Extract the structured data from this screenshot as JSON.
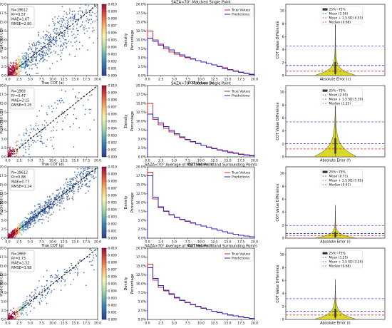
{
  "rows": [
    {
      "scatter": {
        "stats": [
          "N=19612",
          "R²=0.57",
          "MAE=1.67",
          "RMSE=2.80"
        ],
        "xlabel": "True COT (a)",
        "ylabel": "Predicted COT",
        "xticks": [
          "0.0",
          "2.5",
          "5.0",
          "7.5",
          "10.0",
          "12.5",
          "15.0",
          "17.5",
          "20.0"
        ],
        "yticks": [
          "0.0",
          "2.5",
          "5.0",
          "7.5",
          "10.0",
          "12.5",
          "15.0",
          "17.5",
          "20.0"
        ],
        "colorbar_label": "Density",
        "colorbar_ticks": [
          "0.000",
          "0.001",
          "0.002",
          "0.003",
          "0.004",
          "0.005",
          "0.006",
          "0.007",
          "0.008",
          "0.009",
          "0.010"
        ]
      },
      "hist": {
        "title": "SAZA<70° Matched Single Point",
        "xlabel": "COT Values (b)",
        "ylabel": "Percentage",
        "legend": [
          "True Values",
          "Predictions"
        ]
      },
      "violin": {
        "xlabel": "Absolute Error (c)",
        "ylabel": "COT Value Difference",
        "legend": [
          "25%~75%",
          "Mean (1.56)",
          "Mean + 1.5 SD (4.55)",
          "Median (0.68)"
        ]
      }
    },
    {
      "scatter": {
        "stats": [
          "N=1969",
          "R²=0.47",
          "MAE=2.15",
          "RMSE=3.25"
        ],
        "xlabel": "True COT (d)",
        "ylabel": "Predicted COT",
        "xticks": [
          "0.0",
          "2.5",
          "5.0",
          "7.5",
          "10.0",
          "12.5",
          "15.0",
          "17.5",
          "20.0"
        ],
        "yticks": [
          "0.0",
          "2.5",
          "5.0",
          "7.5",
          "10.0",
          "12.5",
          "15.0",
          "17.5",
          "20.0"
        ],
        "colorbar_label": "Density",
        "colorbar_ticks": [
          "0.000",
          "0.001",
          "0.002",
          "0.003",
          "0.004",
          "0.005",
          "0.006",
          "0.007",
          "0.008",
          "0.009",
          "0.010"
        ]
      },
      "hist": {
        "title": "SAZA>70° Matched Single Point",
        "xlabel": "COT Values (e)",
        "ylabel": "Percentage",
        "legend": [
          "True Values",
          "Predictions"
        ]
      },
      "violin": {
        "xlabel": "Absolute Error (f)",
        "ylabel": "COT Value Difference",
        "legend": [
          "25%~75%",
          "Mean (2.05)",
          "Mean + 1.5 SD (5.39)",
          "Median (1.22)"
        ]
      }
    },
    {
      "scatter": {
        "stats": [
          "N=19612",
          "R²=0.88",
          "MAE=0.77",
          "RMSE=1.24"
        ],
        "xlabel": "True COT (g)",
        "ylabel": "Predicted COT",
        "xticks": [
          "0.0",
          "2.5",
          "5.0",
          "7.5",
          "10.0",
          "12.5",
          "15.0",
          "17.5",
          "20.0"
        ],
        "yticks": [
          "0.0",
          "2.5",
          "5.0",
          "7.5",
          "10.0",
          "12.5",
          "15.0",
          "17.5",
          "20.0"
        ],
        "colorbar_label": "Density",
        "colorbar_ticks": [
          "0.000",
          "0.001",
          "0.002",
          "0.003",
          "0.004",
          "0.005",
          "0.006",
          "0.007",
          "0.008",
          "0.009",
          "0.010"
        ]
      },
      "hist": {
        "title": "SAZA<70° Average of Matched Point and Surrounding Points",
        "xlabel": "COT Values (h)",
        "ylabel": "Percentage",
        "legend": [
          "True Values",
          "Predictions"
        ]
      },
      "violin": {
        "xlabel": "Absolute Error (i)",
        "ylabel": "COT Value Difference",
        "legend": [
          "25%~75%",
          "Mean (0.71)",
          "Mean + 1.5 SD (1.95)",
          "Median (0.41)"
        ]
      }
    },
    {
      "scatter": {
        "stats": [
          "N=1969",
          "R²=0.73",
          "MAE=1.32",
          "RMSE=1.98"
        ],
        "xlabel": "True COT (j)",
        "ylabel": "Predicted COT",
        "xticks": [
          "0.0",
          "2.5",
          "5.0",
          "7.5",
          "10.0",
          "12.5",
          "15.0",
          "17.5",
          "20.0"
        ],
        "yticks": [
          "0.0",
          "2.5",
          "5.0",
          "7.5",
          "10.0",
          "12.5",
          "15.0",
          "17.5",
          "20.0"
        ],
        "colorbar_label": "Density",
        "colorbar_ticks": [
          "0.000",
          "0.001",
          "0.002",
          "0.003",
          "0.004",
          "0.005",
          "0.006",
          "0.007",
          "0.008",
          "0.009",
          "0.010"
        ]
      },
      "hist": {
        "title": "SAZA>70° Average of Matched Point and Surrounding Points",
        "xlabel": "COT Values (k)",
        "ylabel": "Percentage",
        "legend": [
          "True Values",
          "Predictions"
        ]
      },
      "violin": {
        "xlabel": "Absolute Error (l)",
        "ylabel": "COT Value Difference",
        "legend": [
          "25%~75%",
          "Mean (1.25)",
          "Mean + 1.5 SD (3.20)",
          "Median (0.68)"
        ]
      }
    }
  ],
  "chart_data": [
    {
      "type": "scatter",
      "name": "density-scatter",
      "xlim": [
        0,
        20
      ],
      "ylim": [
        0,
        20
      ],
      "reference_line": "y=x",
      "colorbar_range": [
        0,
        0.01
      ]
    },
    {
      "type": "bar",
      "name": "cot-histograms",
      "x": [
        0.5,
        1.5,
        2.5,
        3.5,
        4.5,
        5.5,
        6.5,
        7.5,
        8.5,
        9.5,
        10.5,
        11.5,
        12.5,
        13.5,
        14.5,
        15.5,
        16.5,
        17.5,
        18.5,
        19.5
      ],
      "xlim": [
        0,
        20
      ],
      "ylim": [
        0,
        20
      ],
      "yticks": [
        "0.0%",
        "2.5%",
        "5.0%",
        "7.5%",
        "10.0%",
        "12.5%",
        "15.0%",
        "17.5%",
        "20.0%"
      ],
      "xticks": [
        "0.0",
        "2.5",
        "5.0",
        "7.5",
        "10.0",
        "12.5",
        "15.0",
        "17.5",
        "20.0"
      ],
      "panels": [
        {
          "true": [
            12.5,
            10.0,
            8.5,
            7.5,
            6.6,
            6.0,
            5.4,
            5.0,
            4.6,
            4.2,
            3.8,
            3.4,
            3.0,
            2.6,
            2.2,
            1.7,
            1.3,
            1.0,
            0.7,
            0.4
          ],
          "pred": [
            10.5,
            9.6,
            8.8,
            8.0,
            7.2,
            6.4,
            5.8,
            5.2,
            4.7,
            4.2,
            3.8,
            3.4,
            3.0,
            2.5,
            2.0,
            1.6,
            1.2,
            0.9,
            0.6,
            0.3
          ]
        },
        {
          "true": [
            15.0,
            10.5,
            9.0,
            8.0,
            7.0,
            6.2,
            5.4,
            4.8,
            4.2,
            3.7,
            3.2,
            2.8,
            2.4,
            2.0,
            1.7,
            1.4,
            1.1,
            0.8,
            0.6,
            0.4
          ],
          "pred": [
            12.0,
            11.0,
            9.5,
            8.5,
            7.4,
            6.5,
            5.6,
            4.9,
            4.3,
            3.8,
            3.2,
            2.7,
            2.3,
            1.9,
            1.6,
            1.2,
            1.0,
            0.7,
            0.5,
            0.3
          ]
        },
        {
          "true": [
            18.5,
            11.0,
            8.5,
            7.5,
            6.5,
            5.8,
            5.2,
            4.7,
            4.2,
            3.8,
            3.4,
            3.0,
            2.6,
            2.2,
            1.8,
            1.4,
            1.1,
            0.8,
            0.6,
            0.4
          ],
          "pred": [
            17.5,
            11.5,
            8.8,
            7.6,
            6.6,
            5.9,
            5.3,
            4.8,
            4.3,
            3.8,
            3.4,
            3.0,
            2.6,
            2.2,
            1.8,
            1.4,
            1.1,
            0.8,
            0.6,
            0.4
          ]
        },
        {
          "true": [
            15.5,
            11.0,
            9.0,
            8.0,
            7.0,
            6.0,
            5.3,
            4.7,
            4.1,
            3.6,
            3.1,
            2.7,
            2.3,
            2.0,
            1.6,
            1.3,
            1.0,
            0.8,
            0.5,
            0.3
          ],
          "pred": [
            14.5,
            11.5,
            9.5,
            8.2,
            7.2,
            6.2,
            5.4,
            4.8,
            4.2,
            3.7,
            3.2,
            2.7,
            2.3,
            1.9,
            1.6,
            1.2,
            1.0,
            0.7,
            0.5,
            0.3
          ]
        }
      ]
    },
    {
      "type": "violin",
      "name": "abs-error-violins",
      "ylim": [
        0,
        11
      ],
      "yticks": [
        "0",
        "2",
        "4",
        "6",
        "8",
        "10"
      ],
      "panels": [
        {
          "mean": 1.56,
          "mean_plus_1_5sd": 4.55,
          "median": 0.68,
          "q1": 0.25,
          "q3": 2.1,
          "max": 10.3
        },
        {
          "mean": 2.05,
          "mean_plus_1_5sd": 5.39,
          "median": 1.22,
          "q1": 0.5,
          "q3": 2.9,
          "max": 10.3
        },
        {
          "mean": 0.71,
          "mean_plus_1_5sd": 1.95,
          "median": 0.41,
          "q1": 0.15,
          "q3": 0.95,
          "max": 5.1
        },
        {
          "mean": 1.25,
          "mean_plus_1_5sd": 3.2,
          "median": 0.68,
          "q1": 0.28,
          "q3": 1.65,
          "max": 6.2
        }
      ]
    }
  ],
  "colors": {
    "true_line": "#d62728",
    "pred_line": "#1f1fd0",
    "violin_fill": "#d9d92a",
    "mean_line": "#2b2bd6",
    "sd_line": "#8a2be2",
    "median_line": "#d62728"
  }
}
